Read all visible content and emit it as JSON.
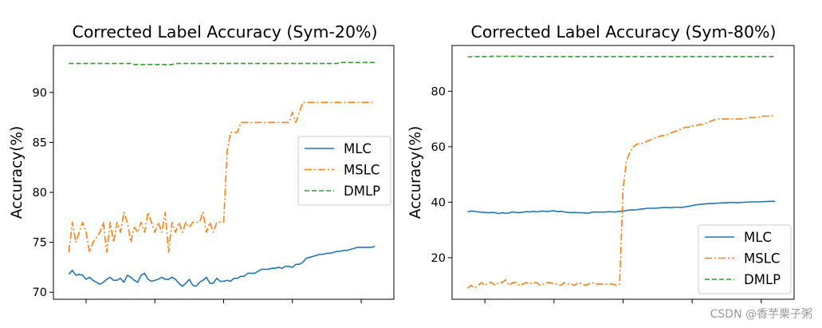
{
  "watermark": "CSDN @香芋栗子粥",
  "chart_data": [
    {
      "type": "line",
      "title": "Corrected Label Accuracy (Sym-20%)",
      "xlabel": "",
      "ylabel": "Accuracy(%)",
      "ylim": [
        69.3,
        94.7
      ],
      "xlim": [
        -4.5,
        94.5
      ],
      "yticks": [
        70,
        75,
        80,
        85,
        90
      ],
      "ytick_labels": [
        "70",
        "75",
        "80",
        "85",
        "90"
      ],
      "xticks": [
        5,
        25,
        45,
        65,
        85
      ],
      "legend": "center-right",
      "grid": false,
      "series": [
        {
          "name": "MLC",
          "color": "#1f77b4",
          "style": "solid",
          "values": [
            71.8,
            72.2,
            71.7,
            71.8,
            71.7,
            71.3,
            71.5,
            71.2,
            71.0,
            70.8,
            71.0,
            71.3,
            71.5,
            71.2,
            71.2,
            71.4,
            71.0,
            71.7,
            71.5,
            71.2,
            71.0,
            71.7,
            71.9,
            71.3,
            71.1,
            71.2,
            71.3,
            71.5,
            71.3,
            71.3,
            71.5,
            71.3,
            70.9,
            70.6,
            70.9,
            71.3,
            70.7,
            70.6,
            71.0,
            71.2,
            71.5,
            70.9,
            70.9,
            71.4,
            71.1,
            71.1,
            71.2,
            71.1,
            71.4,
            71.4,
            71.6,
            71.6,
            71.9,
            71.9,
            71.9,
            72.1,
            72.3,
            72.3,
            72.3,
            72.4,
            72.4,
            72.5,
            72.4,
            72.6,
            72.6,
            72.5,
            72.8,
            72.8,
            73.0,
            73.4,
            73.5,
            73.6,
            73.7,
            73.8,
            73.8,
            73.9,
            73.9,
            74.0,
            74.1,
            74.1,
            74.2,
            74.2,
            74.3,
            74.4,
            74.5,
            74.5,
            74.5,
            74.5,
            74.5,
            74.6
          ]
        },
        {
          "name": "MSLC",
          "color": "#ff7f0e",
          "style": "dashdot",
          "values": [
            74.0,
            77.0,
            75.0,
            76.0,
            77.0,
            76.0,
            74.0,
            75.0,
            75.5,
            76.0,
            77.0,
            74.0,
            77.0,
            75.0,
            77.0,
            76.0,
            78.0,
            77.0,
            75.0,
            76.5,
            76.0,
            77.0,
            76.0,
            78.0,
            77.0,
            76.0,
            77.0,
            76.0,
            78.0,
            74.0,
            77.0,
            76.0,
            77.0,
            76.0,
            77.0,
            76.5,
            77.0,
            77.0,
            77.0,
            78.0,
            76.0,
            77.0,
            76.0,
            77.0,
            77.0,
            77.0,
            84.0,
            86.0,
            86.0,
            86.0,
            87.0,
            87.0,
            87.0,
            87.0,
            87.0,
            87.0,
            87.0,
            87.0,
            87.0,
            87.0,
            87.0,
            87.0,
            87.0,
            87.0,
            87.0,
            88.0,
            87.0,
            88.0,
            89.0,
            89.0,
            89.0,
            89.0,
            89.0,
            89.0,
            89.0,
            89.0,
            89.0,
            89.0,
            89.0,
            89.0,
            89.0,
            89.0,
            89.0,
            89.0,
            89.0,
            89.0,
            89.0,
            89.0,
            89.0,
            89.0
          ]
        },
        {
          "name": "DMLP",
          "color": "#2ca02c",
          "style": "dashed",
          "values": [
            92.9,
            92.9,
            92.9,
            92.9,
            92.9,
            92.9,
            92.9,
            92.9,
            92.9,
            92.9,
            92.9,
            92.9,
            92.9,
            92.9,
            92.9,
            92.9,
            92.9,
            92.9,
            92.9,
            92.8,
            92.8,
            92.8,
            92.8,
            92.8,
            92.8,
            92.8,
            92.8,
            92.8,
            92.8,
            92.8,
            92.8,
            92.9,
            92.9,
            92.9,
            92.9,
            92.9,
            92.9,
            92.9,
            92.9,
            92.9,
            92.9,
            92.9,
            92.9,
            92.9,
            92.9,
            92.9,
            92.9,
            92.9,
            92.9,
            92.9,
            92.9,
            92.9,
            92.9,
            92.9,
            92.9,
            92.9,
            92.9,
            92.9,
            92.9,
            92.9,
            92.9,
            92.9,
            92.9,
            92.9,
            92.9,
            92.9,
            92.9,
            92.9,
            92.9,
            92.9,
            92.9,
            92.9,
            92.9,
            92.9,
            92.9,
            92.9,
            92.9,
            92.9,
            92.9,
            93.0,
            93.0,
            93.0,
            93.0,
            93.0,
            93.0,
            93.0,
            93.0,
            93.0,
            93.0,
            93.0
          ]
        }
      ]
    },
    {
      "type": "line",
      "title": "Corrected Label Accuracy (Sym-80%)",
      "xlabel": "",
      "ylabel": "Accuracy(%)",
      "ylim": [
        5.0,
        96.5
      ],
      "xlim": [
        -4.5,
        94.5
      ],
      "yticks": [
        20,
        40,
        60,
        80
      ],
      "ytick_labels": [
        "20",
        "40",
        "60",
        "80"
      ],
      "xticks": [
        5,
        25,
        45,
        65,
        85
      ],
      "legend": "lower-right",
      "grid": false,
      "series": [
        {
          "name": "MLC",
          "color": "#1f77b4",
          "style": "solid",
          "values": [
            36.5,
            36.8,
            36.7,
            36.5,
            36.4,
            36.3,
            36.2,
            36.3,
            36.2,
            35.9,
            36.2,
            36.0,
            36.1,
            36.5,
            36.3,
            36.2,
            36.4,
            36.6,
            36.5,
            36.7,
            36.5,
            36.7,
            36.8,
            36.6,
            36.8,
            36.9,
            36.6,
            36.7,
            36.5,
            36.3,
            36.2,
            36.3,
            36.2,
            36.2,
            36.1,
            36.0,
            36.4,
            36.5,
            36.4,
            36.4,
            36.5,
            36.6,
            36.5,
            36.5,
            36.7,
            36.8,
            37.0,
            37.2,
            37.2,
            37.3,
            37.5,
            37.6,
            37.8,
            37.8,
            37.8,
            37.9,
            38.0,
            38.1,
            38.1,
            38.0,
            38.2,
            38.2,
            38.1,
            38.3,
            38.5,
            38.8,
            39.0,
            39.2,
            39.3,
            39.4,
            39.5,
            39.5,
            39.6,
            39.7,
            39.8,
            39.8,
            39.9,
            39.9,
            39.8,
            39.9,
            40.0,
            40.0,
            40.1,
            40.1,
            40.1,
            40.2,
            40.2,
            40.3,
            40.3,
            40.3
          ]
        },
        {
          "name": "MSLC",
          "color": "#ff7f0e",
          "style": "dashdot",
          "values": [
            9.0,
            10.0,
            9.0,
            10.0,
            11.0,
            10.0,
            11.0,
            11.0,
            10.0,
            11.0,
            11.0,
            12.0,
            10.0,
            11.0,
            11.0,
            10.0,
            10.5,
            11.0,
            10.5,
            11.0,
            11.0,
            10.0,
            10.5,
            11.0,
            11.0,
            10.5,
            10.5,
            10.0,
            11.0,
            10.5,
            10.5,
            10.0,
            11.0,
            10.5,
            10.0,
            10.5,
            11.0,
            10.5,
            10.5,
            10.5,
            10.5,
            10.5,
            10.5,
            10.0,
            10.5,
            45.0,
            55.0,
            58.0,
            60.0,
            61.0,
            61.0,
            61.5,
            62.0,
            62.5,
            63.0,
            63.5,
            64.0,
            64.0,
            64.5,
            65.0,
            65.5,
            66.0,
            66.5,
            67.0,
            67.0,
            67.5,
            67.5,
            68.0,
            68.0,
            68.5,
            69.0,
            69.5,
            70.0,
            70.0,
            70.0,
            70.0,
            70.0,
            70.0,
            70.0,
            70.0,
            70.0,
            70.5,
            70.5,
            70.5,
            70.5,
            71.0,
            71.0,
            71.0,
            71.2,
            71.3
          ]
        },
        {
          "name": "DMLP",
          "color": "#2ca02c",
          "style": "dashed",
          "values": [
            92.4,
            92.4,
            92.5,
            92.5,
            92.5,
            92.5,
            92.5,
            92.6,
            92.6,
            92.6,
            92.6,
            92.6,
            92.6,
            92.6,
            92.6,
            92.6,
            92.6,
            92.5,
            92.5,
            92.5,
            92.5,
            92.5,
            92.5,
            92.5,
            92.5,
            92.5,
            92.5,
            92.5,
            92.5,
            92.5,
            92.5,
            92.5,
            92.5,
            92.5,
            92.5,
            92.5,
            92.5,
            92.5,
            92.5,
            92.5,
            92.5,
            92.5,
            92.5,
            92.5,
            92.5,
            92.5,
            92.5,
            92.5,
            92.5,
            92.5,
            92.5,
            92.5,
            92.5,
            92.5,
            92.5,
            92.5,
            92.5,
            92.5,
            92.5,
            92.5,
            92.5,
            92.5,
            92.5,
            92.5,
            92.5,
            92.5,
            92.5,
            92.5,
            92.5,
            92.5,
            92.5,
            92.5,
            92.5,
            92.5,
            92.5,
            92.5,
            92.5,
            92.5,
            92.5,
            92.5,
            92.5,
            92.5,
            92.5,
            92.5,
            92.5,
            92.5,
            92.5,
            92.5,
            92.5,
            92.5
          ]
        }
      ]
    }
  ]
}
